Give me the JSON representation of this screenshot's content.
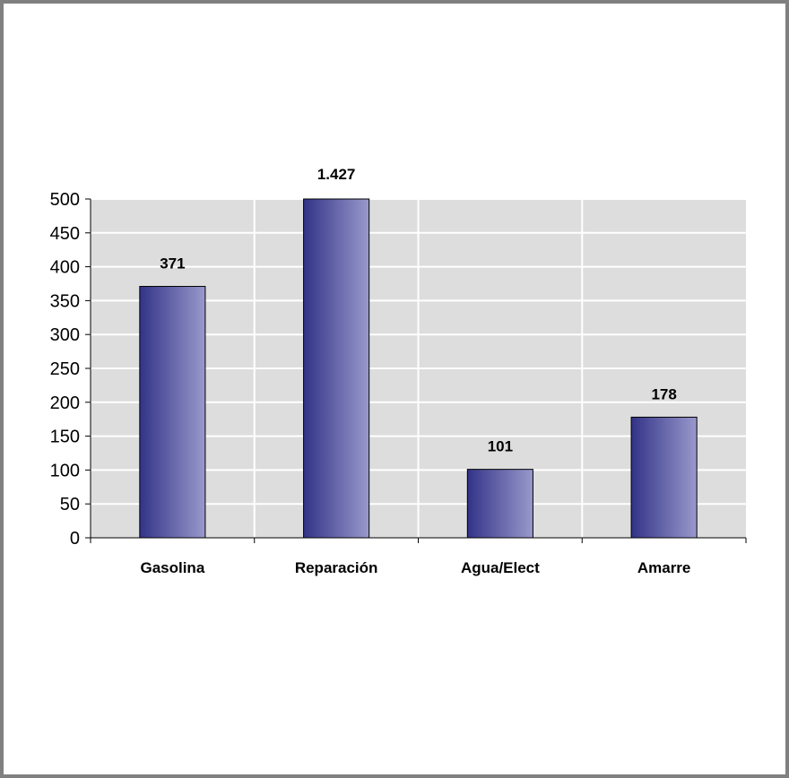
{
  "chart_data": {
    "type": "bar",
    "title": "",
    "xlabel": "",
    "ylabel": "",
    "categories": [
      "Gasolina",
      "Reparación",
      "Agua/Elect",
      "Amarre"
    ],
    "values": [
      371,
      1427,
      101,
      178
    ],
    "data_labels": [
      "371",
      "1.427",
      "101",
      "178"
    ],
    "ylim": [
      0,
      500
    ],
    "yticks": [
      0,
      50,
      100,
      150,
      200,
      250,
      300,
      350,
      400,
      450,
      500
    ],
    "grid": true,
    "legend": "none",
    "colors": {
      "plot_background": "#dddddd",
      "bar_dark": "#333388",
      "bar_light": "#9999cc",
      "gridline": "#ffffff",
      "frame": "#808080"
    }
  }
}
